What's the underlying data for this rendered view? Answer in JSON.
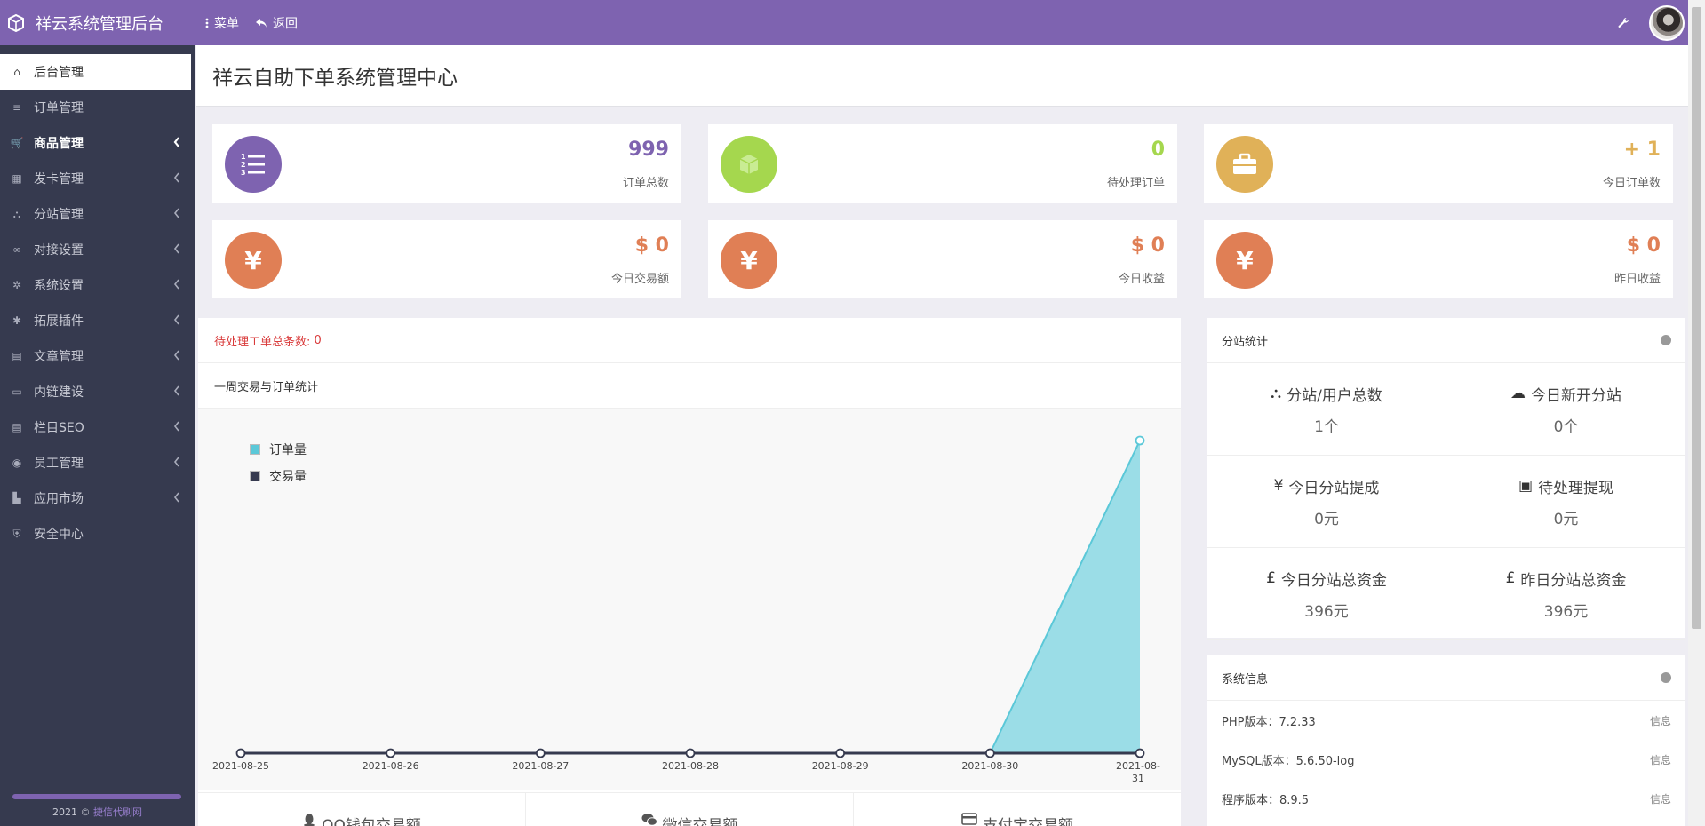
{
  "topbar": {
    "brand": "祥云系统管理后台",
    "menu_label": "菜单",
    "back_label": "返回"
  },
  "sidebar": {
    "items": [
      {
        "label": "后台管理",
        "icon": "home-icon"
      },
      {
        "label": "订单管理",
        "icon": "list-icon"
      },
      {
        "label": "商品管理",
        "icon": "cart-icon"
      },
      {
        "label": "发卡管理",
        "icon": "grid-icon"
      },
      {
        "label": "分站管理",
        "icon": "sitemap-icon"
      },
      {
        "label": "对接设置",
        "icon": "link-icon"
      },
      {
        "label": "系统设置",
        "icon": "gear-icon"
      },
      {
        "label": "拓展插件",
        "icon": "cogs-icon"
      },
      {
        "label": "文章管理",
        "icon": "article-icon"
      },
      {
        "label": "内链建设",
        "icon": "internal-link-icon"
      },
      {
        "label": "栏目SEO",
        "icon": "seo-icon"
      },
      {
        "label": "员工管理",
        "icon": "user-icon"
      },
      {
        "label": "应用市场",
        "icon": "market-icon"
      },
      {
        "label": "安全中心",
        "icon": "shield-icon"
      }
    ],
    "footer_year": "2021 ©",
    "footer_link": "捷信代刷网"
  },
  "header": {
    "title": "祥云自助下单系统管理中心"
  },
  "stats": [
    {
      "value": "999",
      "label": "订单总数",
      "color": "#7e63b0",
      "icon": "ordered-list-icon"
    },
    {
      "value": "0",
      "label": "待处理订单",
      "color": "#a5d74e",
      "icon": "cube-icon"
    },
    {
      "value": "+ 1",
      "label": "今日订单数",
      "color": "#e0b158",
      "icon": "briefcase-icon"
    },
    {
      "value": "$ 0",
      "label": "今日交易额",
      "color": "#e07f55",
      "icon": "yen-icon"
    },
    {
      "value": "$ 0",
      "label": "今日收益",
      "color": "#e07f55",
      "icon": "yen-icon"
    },
    {
      "value": "$ 0",
      "label": "昨日收益",
      "color": "#e07f55",
      "icon": "yen-icon"
    }
  ],
  "main": {
    "pending_label": "待处理工单总条数:",
    "pending_value": "0",
    "chart_title": "一周交易与订单统计",
    "payments": [
      "QQ钱包交易额",
      "微信交易额",
      "支付宝交易额"
    ]
  },
  "chart_data": {
    "type": "area",
    "x": [
      "2021-08-25",
      "2021-08-26",
      "2021-08-27",
      "2021-08-28",
      "2021-08-29",
      "2021-08-30",
      "2021-08-31"
    ],
    "series": [
      {
        "name": "订单量",
        "color": "#5bc8d8",
        "values": [
          0,
          0,
          0,
          0,
          0,
          0,
          1
        ]
      },
      {
        "name": "交易量",
        "color": "#363a4f",
        "values": [
          0,
          0,
          0,
          0,
          0,
          0,
          0
        ]
      }
    ],
    "ylim": [
      0,
      1
    ]
  },
  "substation": {
    "title": "分站统计",
    "cells": [
      {
        "label": "分站/用户总数",
        "value": "1个",
        "icon": "sitemap-icon"
      },
      {
        "label": "今日新开分站",
        "value": "0个",
        "icon": "cloud-icon"
      },
      {
        "label": "今日分站提成",
        "value": "0元",
        "icon": "yen-sign-icon"
      },
      {
        "label": "待处理提现",
        "value": "0元",
        "icon": "money-icon"
      },
      {
        "label": "今日分站总资金",
        "value": "396元",
        "icon": "pound-icon"
      },
      {
        "label": "昨日分站总资金",
        "value": "396元",
        "icon": "pound-icon"
      }
    ]
  },
  "sysinfo": {
    "title": "系统信息",
    "rows": [
      {
        "label": "PHP版本：7.2.33",
        "tag": "信息"
      },
      {
        "label": "MySQL版本：5.6.50-log",
        "tag": "信息"
      },
      {
        "label": "程序版本：8.9.5",
        "tag": "信息"
      }
    ]
  }
}
